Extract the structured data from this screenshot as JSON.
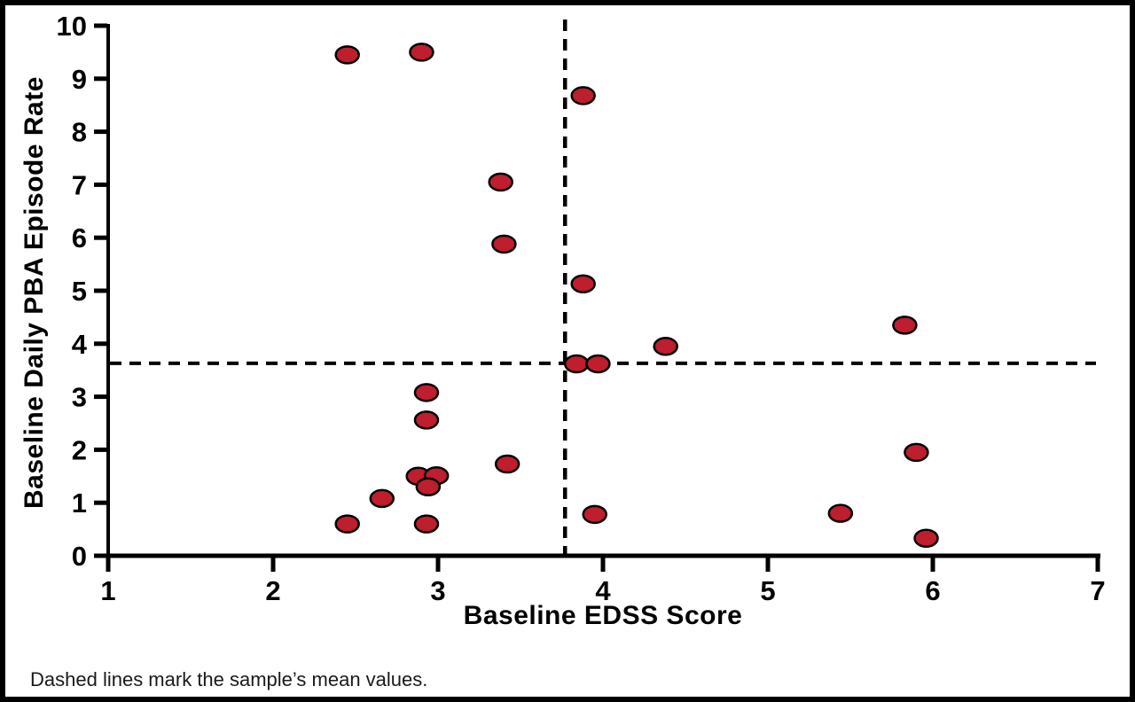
{
  "chart_data": {
    "type": "scatter",
    "title": "",
    "xlabel": "Baseline EDSS Score",
    "ylabel": "Baseline Daily PBA Episode Rate",
    "note": "Dashed lines mark the sample’s mean values.",
    "xlim": [
      1,
      7
    ],
    "ylim": [
      0,
      10
    ],
    "x_ticks": [
      1,
      2,
      3,
      4,
      5,
      6,
      7
    ],
    "y_ticks": [
      0,
      1,
      2,
      3,
      4,
      5,
      6,
      7,
      8,
      9,
      10
    ],
    "grid": false,
    "legend": false,
    "marker": {
      "shape": "ellipse",
      "fill": "#BE1E2D",
      "stroke": "#000000"
    },
    "mean_lines": {
      "style": "dashed",
      "color": "#000000",
      "x": 3.77,
      "y": 3.63
    },
    "points": [
      [
        2.45,
        9.45
      ],
      [
        2.9,
        9.5
      ],
      [
        3.88,
        8.68
      ],
      [
        3.38,
        7.05
      ],
      [
        3.4,
        5.88
      ],
      [
        3.88,
        5.13
      ],
      [
        5.83,
        4.35
      ],
      [
        4.38,
        3.95
      ],
      [
        3.84,
        3.62
      ],
      [
        3.97,
        3.62
      ],
      [
        2.93,
        3.08
      ],
      [
        2.93,
        2.56
      ],
      [
        5.9,
        1.95
      ],
      [
        3.42,
        1.73
      ],
      [
        2.88,
        1.5
      ],
      [
        2.99,
        1.51
      ],
      [
        2.94,
        1.3
      ],
      [
        2.66,
        1.08
      ],
      [
        2.45,
        0.6
      ],
      [
        2.93,
        0.6
      ],
      [
        3.95,
        0.78
      ],
      [
        5.44,
        0.8
      ],
      [
        5.96,
        0.33
      ]
    ]
  }
}
